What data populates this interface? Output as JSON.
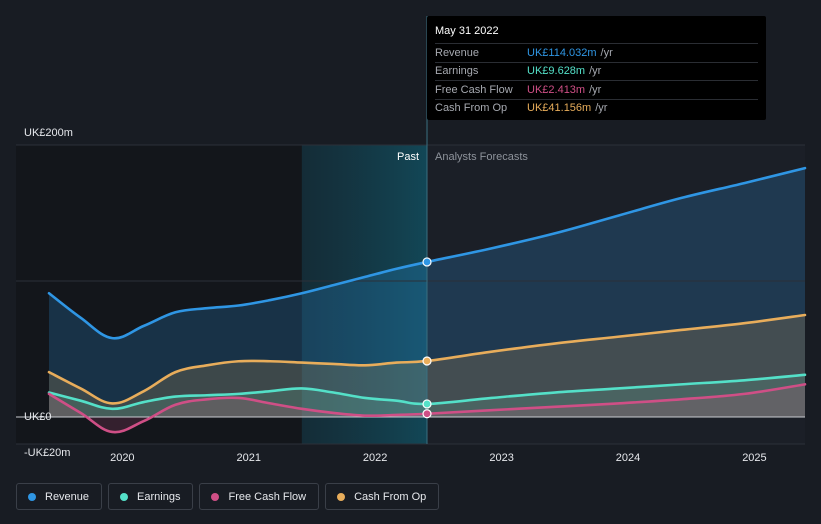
{
  "chart_data": {
    "type": "line",
    "title": "",
    "xlabel": "",
    "ylabel": "",
    "y_tick_labels": [
      "UK£200m",
      "UK£0",
      "-UK£20m"
    ],
    "ylim": [
      -20,
      200
    ],
    "xlim": [
      2019.4,
      2025.4
    ],
    "x_ticks": [
      2020,
      2021,
      2022,
      2023,
      2024,
      2025
    ],
    "x_tick_labels": [
      "2020",
      "2021",
      "2022",
      "2023",
      "2024",
      "2025"
    ],
    "past_label": "Past",
    "forecast_label": "Analysts Forecasts",
    "forecast_start": 2022.41,
    "highlight_start": 2021.42,
    "series": [
      {
        "name": "Revenue",
        "color": "#2f96e4",
        "x": [
          2019.42,
          2019.67,
          2019.92,
          2020.17,
          2020.42,
          2020.67,
          2020.92,
          2021.17,
          2021.42,
          2021.67,
          2021.92,
          2022.17,
          2022.41,
          2022.92,
          2023.42,
          2023.92,
          2024.42,
          2024.92,
          2025.4
        ],
        "values": [
          91,
          73,
          58,
          67,
          77,
          80,
          82,
          86,
          91,
          97,
          103,
          109,
          114,
          124,
          135,
          148,
          161,
          172,
          183
        ]
      },
      {
        "name": "Earnings",
        "color": "#54e0c8",
        "x": [
          2019.42,
          2019.67,
          2019.92,
          2020.17,
          2020.42,
          2020.67,
          2020.92,
          2021.17,
          2021.42,
          2021.67,
          2021.92,
          2022.17,
          2022.41,
          2022.92,
          2023.42,
          2023.92,
          2024.42,
          2024.92,
          2025.4
        ],
        "values": [
          18,
          12,
          6,
          11,
          15,
          16,
          17,
          19,
          21,
          18,
          14,
          12,
          9.6,
          14,
          18,
          21,
          24,
          27,
          31
        ]
      },
      {
        "name": "Free Cash Flow",
        "color": "#cf4f86",
        "x": [
          2019.42,
          2019.67,
          2019.92,
          2020.17,
          2020.42,
          2020.67,
          2020.92,
          2021.17,
          2021.42,
          2021.67,
          2021.92,
          2022.17,
          2022.41,
          2022.92,
          2023.42,
          2023.92,
          2024.42,
          2024.92,
          2025.4
        ],
        "values": [
          17,
          3,
          -11,
          -3,
          9,
          13,
          14,
          10,
          6,
          3,
          1,
          1.5,
          2.4,
          5,
          7.5,
          10,
          13,
          17,
          24
        ]
      },
      {
        "name": "Cash From Op",
        "color": "#e8ad5b",
        "x": [
          2019.42,
          2019.67,
          2019.92,
          2020.17,
          2020.42,
          2020.67,
          2020.92,
          2021.17,
          2021.42,
          2021.67,
          2021.92,
          2022.17,
          2022.41,
          2022.92,
          2023.42,
          2023.92,
          2024.42,
          2024.92,
          2025.4
        ],
        "values": [
          33,
          21,
          10,
          19,
          33,
          38,
          41,
          41,
          40,
          39,
          38,
          40,
          41.2,
          48,
          54,
          59,
          64,
          69,
          75
        ]
      }
    ]
  },
  "tooltip": {
    "date": "May 31 2022",
    "rows": [
      {
        "name": "Revenue",
        "value": "UK£114.032m",
        "unit": "/yr",
        "color": "#2f96e4"
      },
      {
        "name": "Earnings",
        "value": "UK£9.628m",
        "unit": "/yr",
        "color": "#54e0c8"
      },
      {
        "name": "Free Cash Flow",
        "value": "UK£2.413m",
        "unit": "/yr",
        "color": "#cf4f86"
      },
      {
        "name": "Cash From Op",
        "value": "UK£41.156m",
        "unit": "/yr",
        "color": "#e8ad5b"
      }
    ]
  },
  "legend": [
    {
      "label": "Revenue",
      "color": "#2f96e4"
    },
    {
      "label": "Earnings",
      "color": "#54e0c8"
    },
    {
      "label": "Free Cash Flow",
      "color": "#cf4f86"
    },
    {
      "label": "Cash From Op",
      "color": "#e8ad5b"
    }
  ]
}
